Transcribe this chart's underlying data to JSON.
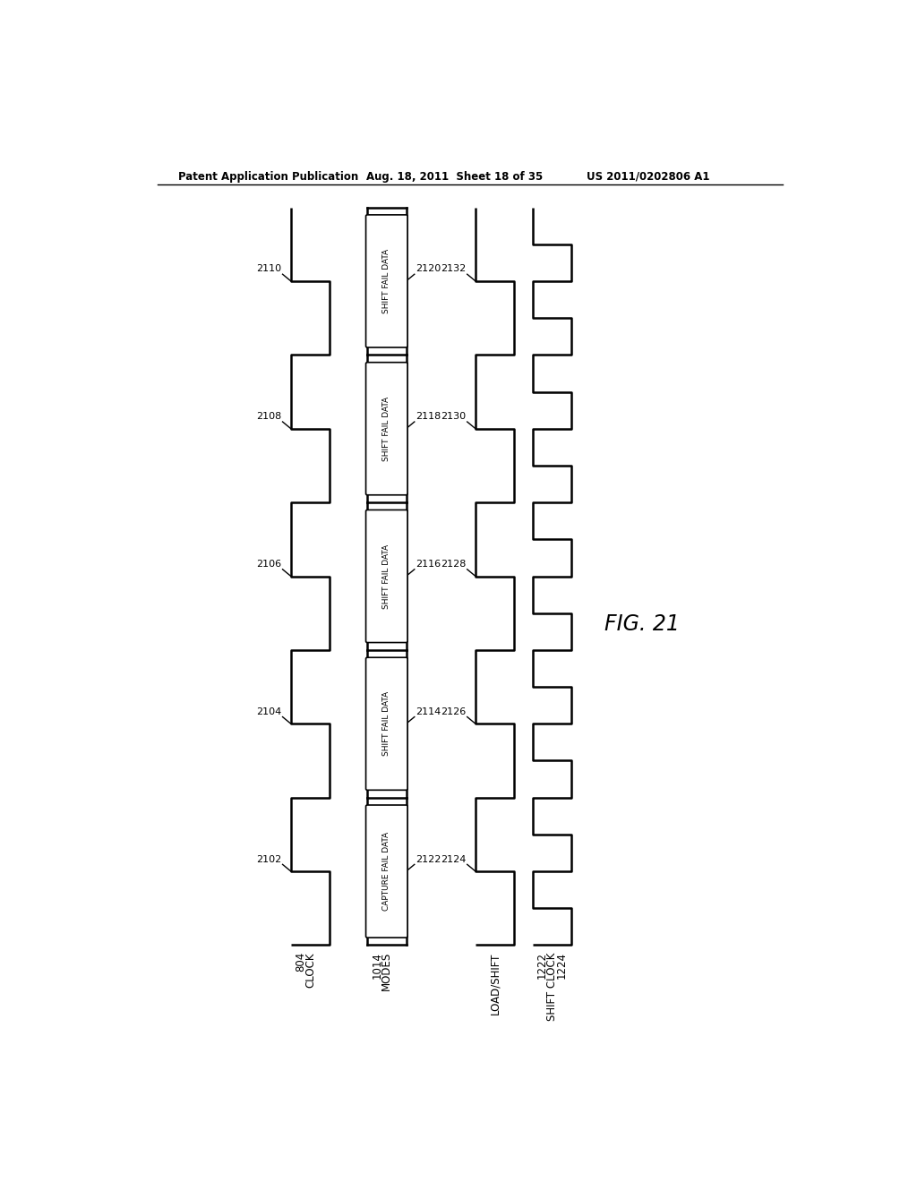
{
  "header_left": "Patent Application Publication",
  "header_mid": "Aug. 18, 2011  Sheet 18 of 35",
  "header_right": "US 2011/0202806 A1",
  "fig_label": "FIG. 21",
  "modes_segments": [
    "CAPTURE FAIL DATA",
    "SHIFT FAIL DATA",
    "SHIFT FAIL DATA",
    "SHIFT FAIL DATA",
    "SHIFT FAIL DATA"
  ],
  "clock_ref": [
    "2102",
    "2104",
    "2106",
    "2108",
    "2110"
  ],
  "modes_ref": [
    "2122",
    "2114",
    "2116",
    "2118",
    "2120"
  ],
  "load_ref": [
    "2124",
    "2126",
    "2128",
    "2130",
    "2132"
  ],
  "bg_color": "#ffffff",
  "line_color": "#000000",
  "text_color": "#000000"
}
